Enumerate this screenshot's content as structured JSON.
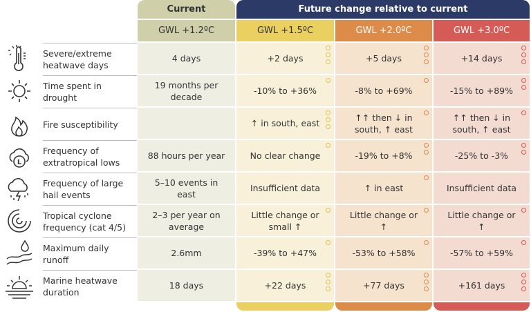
{
  "header": {
    "current": "Current",
    "future": "Future change relative to current"
  },
  "columns": [
    {
      "label": "GWL +1.2ºC",
      "head": "#cfcfa9",
      "cell": "#efeee3",
      "ring": ""
    },
    {
      "label": "GWL +1.5ºC",
      "head": "#e9d060",
      "cell": "#f8f0d8",
      "ring": "#e0c24c"
    },
    {
      "label": "GWL +2.0ºC",
      "head": "#dd8b48",
      "cell": "#f6e3cd",
      "ring": "#d98a4e"
    },
    {
      "label": "GWL +3.0ºC",
      "head": "#d55b56",
      "cell": "#f4dbd2",
      "ring": "#d35656"
    }
  ],
  "colors": {
    "future_header": "#2c3a67"
  },
  "rows": [
    {
      "icon": "thermometer-sun-icon",
      "label": "Severe/extreme heatwave days",
      "values": [
        "4 days",
        "+2 days",
        "+5 days",
        "+14 days"
      ],
      "confidence": [
        0,
        3,
        3,
        3
      ]
    },
    {
      "icon": "sun-icon",
      "label": "Time spent in drought",
      "values": [
        "19 months per decade",
        "-10% to +36%",
        "-8% to +69%",
        "-15% to +89%"
      ],
      "confidence": [
        0,
        1,
        1,
        2
      ]
    },
    {
      "icon": "fire-icon",
      "label": "Fire susceptibility",
      "values": [
        "",
        "↑ in south, east",
        "↑↑ then ↓ in south, ↑ east",
        "↑↑ then ↓ in south, ↑ east"
      ],
      "confidence": [
        0,
        3,
        1,
        1
      ]
    },
    {
      "icon": "cloud-low-icon",
      "label": "Frequency of extratropical lows",
      "values": [
        "88 hours per year",
        "No clear change",
        "-19% to +8%",
        "-25% to -3%"
      ],
      "confidence": [
        0,
        1,
        2,
        2
      ]
    },
    {
      "icon": "hail-storm-icon",
      "label": "Frequency of large hail events",
      "values": [
        "5–10 events in east",
        "Insufficient data",
        "↑ in east",
        "Insufficient data"
      ],
      "confidence": [
        0,
        0,
        1,
        0
      ]
    },
    {
      "icon": "cyclone-icon",
      "label": "Tropical cyclone frequency (cat 4/5)",
      "values": [
        "2–3 per year on average",
        "Little change or small ↑",
        "Little change or ↑",
        "Little change or ↑"
      ],
      "confidence": [
        0,
        1,
        1,
        1
      ]
    },
    {
      "icon": "runoff-icon",
      "label": "Maximum daily runoff",
      "values": [
        "2.6mm",
        "-39% to +47%",
        "-53% to +58%",
        "-57% to +59%"
      ],
      "confidence": [
        0,
        1,
        1,
        1
      ]
    },
    {
      "icon": "sunset-sea-icon",
      "label": "Marine heatwave duration",
      "values": [
        "18 days",
        "+22 days",
        "+77 days",
        "+161 days"
      ],
      "confidence": [
        0,
        3,
        3,
        3
      ]
    }
  ]
}
